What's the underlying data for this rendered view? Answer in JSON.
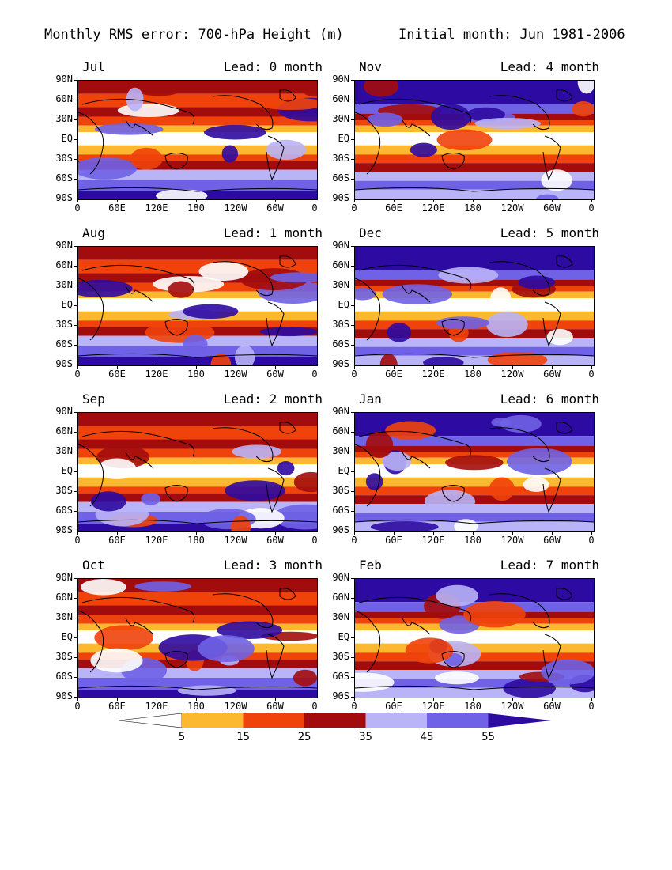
{
  "title": {
    "left": "Monthly RMS error: 700-hPa Height (m)",
    "right": "Initial month: Jun 1981-2006"
  },
  "colors": {
    "lt5": "#ffffff",
    "c5_15": "#fdb831",
    "c15_25": "#f0420b",
    "c25_35": "#a30c0c",
    "c35_45": "#b9b3f7",
    "c45_55": "#6f62e6",
    "gt55": "#2d0aa1",
    "coast": "#000000"
  },
  "lat_ticks": [
    "90N",
    "60N",
    "30N",
    "EQ",
    "30S",
    "60S",
    "90S"
  ],
  "lon_ticks": [
    "0",
    "60E",
    "120E",
    "180",
    "120W",
    "60W",
    "0"
  ],
  "panels": [
    {
      "month": "Jul",
      "lead": "Lead: 0 month"
    },
    {
      "month": "Nov",
      "lead": "Lead: 4 month"
    },
    {
      "month": "Aug",
      "lead": "Lead: 1 month"
    },
    {
      "month": "Dec",
      "lead": "Lead: 5 month"
    },
    {
      "month": "Sep",
      "lead": "Lead: 2 month"
    },
    {
      "month": "Jan",
      "lead": "Lead: 6 month"
    },
    {
      "month": "Oct",
      "lead": "Lead: 3 month"
    },
    {
      "month": "Feb",
      "lead": "Lead: 7 month"
    }
  ],
  "colorbar": {
    "labels": [
      "5",
      "15",
      "25",
      "35",
      "45",
      "55"
    ],
    "bins": [
      "lt5",
      "c5_15",
      "c15_25",
      "c25_35",
      "c35_45",
      "c45_55",
      "gt55"
    ]
  }
}
